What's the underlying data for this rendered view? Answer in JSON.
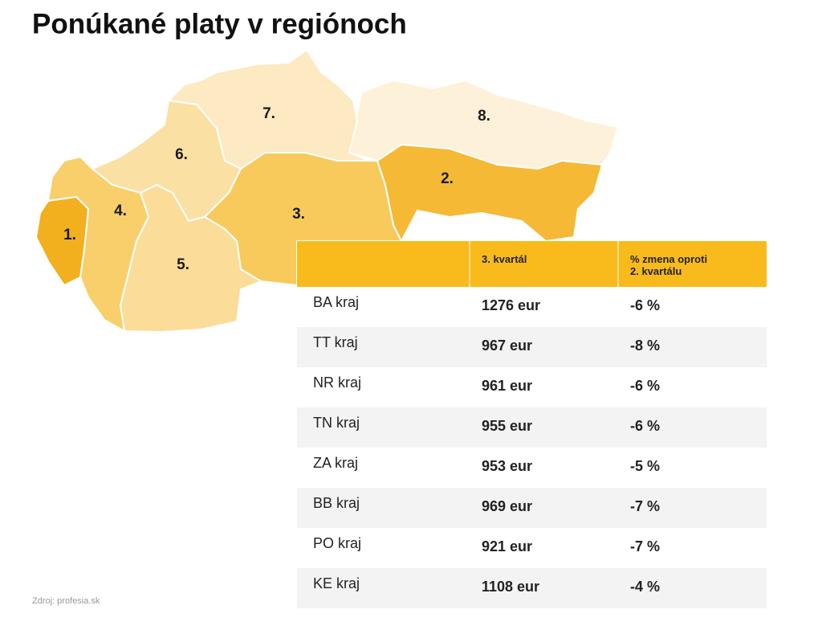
{
  "title": "Ponúkané platy v regiónoch",
  "map": {
    "regions": [
      {
        "label": "1."
      },
      {
        "label": "2."
      },
      {
        "label": "3."
      },
      {
        "label": "4."
      },
      {
        "label": "5."
      },
      {
        "label": "6."
      },
      {
        "label": "7."
      },
      {
        "label": "8."
      }
    ]
  },
  "table": {
    "header": [
      "3. kvartál",
      [
        "% zmena oproti",
        "2. kvartálu"
      ]
    ],
    "rows": [
      [
        "BA kraj",
        "1276 eur",
        "-6 %"
      ],
      [
        "TT kraj",
        "967 eur",
        "-8 %"
      ],
      [
        "NR kraj",
        "961 eur",
        "-6 %"
      ],
      [
        "TN kraj",
        "955 eur",
        "-6 %"
      ],
      [
        "ZA kraj",
        "953 eur",
        "-5 %"
      ],
      [
        "BB kraj",
        "969 eur",
        "-7 %"
      ],
      [
        "PO kraj",
        "921 eur",
        "-7 %"
      ],
      [
        "KE kraj",
        "1108 eur",
        "-4 %"
      ]
    ]
  },
  "source": "Zdroj: profesia.sk"
}
